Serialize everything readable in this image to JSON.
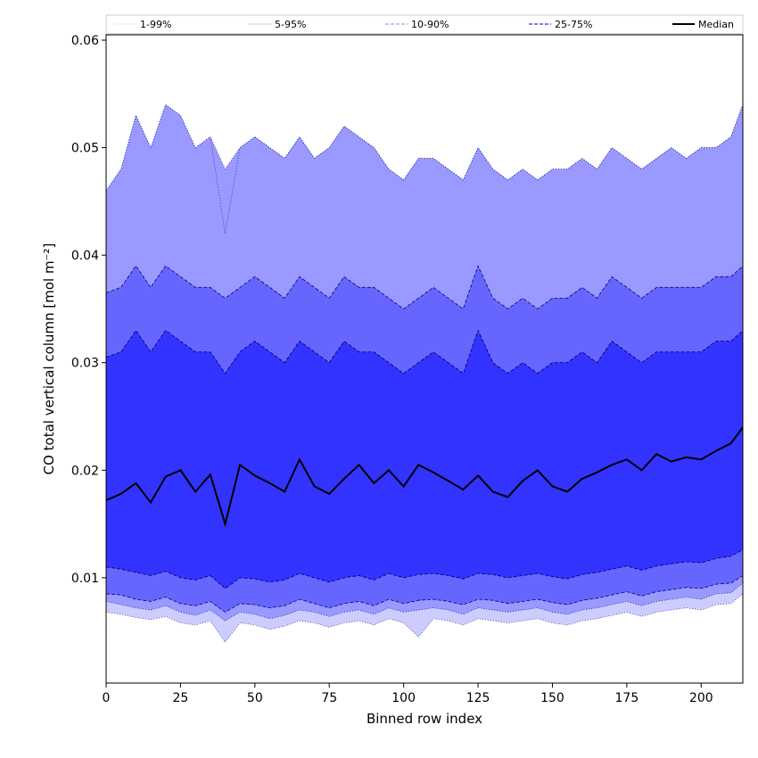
{
  "chart_data": {
    "type": "area",
    "title": "",
    "xlabel": "Binned row index",
    "ylabel": "CO total vertical column [mol m⁻²]",
    "xlim": [
      0,
      214
    ],
    "ylim": [
      0.0002,
      0.0605
    ],
    "x_ticks": [
      0,
      25,
      50,
      75,
      100,
      125,
      150,
      175,
      200
    ],
    "y_ticks": [
      0.01,
      0.02,
      0.03,
      0.04,
      0.05,
      0.06
    ],
    "y_tick_labels": [
      "0.01",
      "0.02",
      "0.03",
      "0.04",
      "0.05",
      "0.06"
    ],
    "grid": false,
    "legend_position": "top",
    "legend": [
      {
        "label": "1-99%",
        "style": "dotted-light"
      },
      {
        "label": "5-95%",
        "style": "dotted"
      },
      {
        "label": "10-90%",
        "style": "dashed-light"
      },
      {
        "label": "25-75%",
        "style": "dashed"
      },
      {
        "label": "Median",
        "style": "solid"
      }
    ],
    "colors": {
      "band_1_99": "#ccccff",
      "band_5_95": "#9999ff",
      "band_10_90": "#6666ff",
      "band_25_75": "#3333ff",
      "line_dark": "#000080",
      "median": "#000000"
    },
    "x": [
      0,
      5,
      10,
      15,
      20,
      25,
      30,
      35,
      40,
      45,
      50,
      55,
      60,
      65,
      70,
      75,
      80,
      85,
      90,
      95,
      100,
      105,
      110,
      115,
      120,
      125,
      130,
      135,
      140,
      145,
      150,
      155,
      160,
      165,
      170,
      175,
      180,
      185,
      190,
      195,
      200,
      205,
      210,
      214
    ],
    "series": [
      {
        "name": "Median",
        "values": [
          0.0172,
          0.0178,
          0.0188,
          0.017,
          0.0194,
          0.02,
          0.018,
          0.0196,
          0.015,
          0.0205,
          0.0195,
          0.0188,
          0.018,
          0.021,
          0.0185,
          0.0178,
          0.0192,
          0.0205,
          0.0188,
          0.02,
          0.0185,
          0.0205,
          0.0198,
          0.019,
          0.0182,
          0.0195,
          0.018,
          0.0175,
          0.019,
          0.02,
          0.0185,
          0.018,
          0.0192,
          0.0198,
          0.0205,
          0.021,
          0.02,
          0.0215,
          0.0208,
          0.0212,
          0.021,
          0.0218,
          0.0225,
          0.024
        ]
      },
      {
        "name": "5-95%",
        "values": [
          [
            0.0078,
            0.046
          ],
          [
            0.0075,
            0.048
          ],
          [
            0.0072,
            0.053
          ],
          [
            0.007,
            0.05
          ],
          [
            0.0074,
            0.054
          ],
          [
            0.0068,
            0.053
          ],
          [
            0.0065,
            0.05
          ],
          [
            0.007,
            0.051
          ],
          [
            0.006,
            0.048
          ],
          [
            0.0068,
            0.05
          ],
          [
            0.0066,
            0.051
          ],
          [
            0.0062,
            0.05
          ],
          [
            0.0065,
            0.049
          ],
          [
            0.007,
            0.051
          ],
          [
            0.0068,
            0.049
          ],
          [
            0.0064,
            0.05
          ],
          [
            0.0068,
            0.052
          ],
          [
            0.007,
            0.051
          ],
          [
            0.0066,
            0.05
          ],
          [
            0.0072,
            0.048
          ],
          [
            0.0068,
            0.047
          ],
          [
            0.007,
            0.049
          ],
          [
            0.0072,
            0.049
          ],
          [
            0.007,
            0.048
          ],
          [
            0.0066,
            0.047
          ],
          [
            0.0072,
            0.05
          ],
          [
            0.007,
            0.048
          ],
          [
            0.0068,
            0.047
          ],
          [
            0.007,
            0.048
          ],
          [
            0.0072,
            0.047
          ],
          [
            0.0068,
            0.048
          ],
          [
            0.0066,
            0.048
          ],
          [
            0.007,
            0.049
          ],
          [
            0.0072,
            0.048
          ],
          [
            0.0075,
            0.05
          ],
          [
            0.0078,
            0.049
          ],
          [
            0.0074,
            0.048
          ],
          [
            0.0078,
            0.049
          ],
          [
            0.008,
            0.05
          ],
          [
            0.0082,
            0.049
          ],
          [
            0.008,
            0.05
          ],
          [
            0.0085,
            0.05
          ],
          [
            0.0086,
            0.051
          ],
          [
            0.0095,
            0.054
          ]
        ]
      },
      {
        "name": "10-90%",
        "values": [
          [
            0.0085,
            0.0365
          ],
          [
            0.0084,
            0.037
          ],
          [
            0.008,
            0.039
          ],
          [
            0.0078,
            0.037
          ],
          [
            0.0082,
            0.039
          ],
          [
            0.0076,
            0.038
          ],
          [
            0.0074,
            0.037
          ],
          [
            0.0078,
            0.037
          ],
          [
            0.0068,
            0.036
          ],
          [
            0.0076,
            0.037
          ],
          [
            0.0075,
            0.038
          ],
          [
            0.0072,
            0.037
          ],
          [
            0.0074,
            0.036
          ],
          [
            0.008,
            0.038
          ],
          [
            0.0076,
            0.037
          ],
          [
            0.0072,
            0.036
          ],
          [
            0.0076,
            0.038
          ],
          [
            0.0078,
            0.037
          ],
          [
            0.0074,
            0.037
          ],
          [
            0.008,
            0.036
          ],
          [
            0.0076,
            0.035
          ],
          [
            0.0079,
            0.036
          ],
          [
            0.008,
            0.037
          ],
          [
            0.0078,
            0.036
          ],
          [
            0.0075,
            0.035
          ],
          [
            0.008,
            0.039
          ],
          [
            0.0079,
            0.036
          ],
          [
            0.0076,
            0.035
          ],
          [
            0.0078,
            0.036
          ],
          [
            0.008,
            0.035
          ],
          [
            0.0077,
            0.036
          ],
          [
            0.0075,
            0.036
          ],
          [
            0.0079,
            0.037
          ],
          [
            0.0081,
            0.036
          ],
          [
            0.0084,
            0.038
          ],
          [
            0.0087,
            0.037
          ],
          [
            0.0083,
            0.036
          ],
          [
            0.0087,
            0.037
          ],
          [
            0.0089,
            0.037
          ],
          [
            0.0091,
            0.037
          ],
          [
            0.009,
            0.037
          ],
          [
            0.0094,
            0.038
          ],
          [
            0.0095,
            0.038
          ],
          [
            0.0102,
            0.039
          ]
        ]
      },
      {
        "name": "25-75%",
        "values": [
          [
            0.011,
            0.0305
          ],
          [
            0.0108,
            0.031
          ],
          [
            0.0105,
            0.033
          ],
          [
            0.0102,
            0.031
          ],
          [
            0.0106,
            0.033
          ],
          [
            0.01,
            0.032
          ],
          [
            0.0098,
            0.031
          ],
          [
            0.0102,
            0.031
          ],
          [
            0.009,
            0.029
          ],
          [
            0.01,
            0.031
          ],
          [
            0.0099,
            0.032
          ],
          [
            0.0096,
            0.031
          ],
          [
            0.0098,
            0.03
          ],
          [
            0.0104,
            0.032
          ],
          [
            0.01,
            0.031
          ],
          [
            0.0096,
            0.03
          ],
          [
            0.01,
            0.032
          ],
          [
            0.0102,
            0.031
          ],
          [
            0.0098,
            0.031
          ],
          [
            0.0104,
            0.03
          ],
          [
            0.01,
            0.029
          ],
          [
            0.0103,
            0.03
          ],
          [
            0.0104,
            0.031
          ],
          [
            0.0102,
            0.03
          ],
          [
            0.0099,
            0.029
          ],
          [
            0.0104,
            0.033
          ],
          [
            0.0103,
            0.03
          ],
          [
            0.01,
            0.029
          ],
          [
            0.0102,
            0.03
          ],
          [
            0.0104,
            0.029
          ],
          [
            0.0101,
            0.03
          ],
          [
            0.0099,
            0.03
          ],
          [
            0.0103,
            0.031
          ],
          [
            0.0105,
            0.03
          ],
          [
            0.0108,
            0.032
          ],
          [
            0.0111,
            0.031
          ],
          [
            0.0107,
            0.03
          ],
          [
            0.0111,
            0.031
          ],
          [
            0.0113,
            0.031
          ],
          [
            0.0115,
            0.031
          ],
          [
            0.0114,
            0.031
          ],
          [
            0.0118,
            0.032
          ],
          [
            0.012,
            0.032
          ],
          [
            0.0126,
            0.033
          ]
        ]
      },
      {
        "name": "1-99%",
        "values": [
          [
            0.0068,
            0.046
          ],
          [
            0.0066,
            0.048
          ],
          [
            0.0063,
            0.053
          ],
          [
            0.0061,
            0.05
          ],
          [
            0.0064,
            0.054
          ],
          [
            0.0058,
            0.053
          ],
          [
            0.0056,
            0.05
          ],
          [
            0.006,
            0.051
          ],
          [
            0.004,
            0.042
          ],
          [
            0.0058,
            0.05
          ],
          [
            0.0056,
            0.051
          ],
          [
            0.0052,
            0.05
          ],
          [
            0.0055,
            0.049
          ],
          [
            0.006,
            0.051
          ],
          [
            0.0058,
            0.049
          ],
          [
            0.0054,
            0.05
          ],
          [
            0.0058,
            0.052
          ],
          [
            0.006,
            0.051
          ],
          [
            0.0056,
            0.05
          ],
          [
            0.0062,
            0.048
          ],
          [
            0.0058,
            0.047
          ],
          [
            0.0045,
            0.049
          ],
          [
            0.0062,
            0.049
          ],
          [
            0.006,
            0.048
          ],
          [
            0.0056,
            0.047
          ],
          [
            0.0062,
            0.05
          ],
          [
            0.006,
            0.048
          ],
          [
            0.0058,
            0.047
          ],
          [
            0.006,
            0.048
          ],
          [
            0.0062,
            0.047
          ],
          [
            0.0058,
            0.048
          ],
          [
            0.0056,
            0.048
          ],
          [
            0.006,
            0.049
          ],
          [
            0.0062,
            0.048
          ],
          [
            0.0065,
            0.05
          ],
          [
            0.0068,
            0.049
          ],
          [
            0.0064,
            0.048
          ],
          [
            0.0068,
            0.049
          ],
          [
            0.007,
            0.05
          ],
          [
            0.0072,
            0.049
          ],
          [
            0.007,
            0.05
          ],
          [
            0.0075,
            0.05
          ],
          [
            0.0076,
            0.051
          ],
          [
            0.0085,
            0.054
          ]
        ]
      }
    ]
  }
}
